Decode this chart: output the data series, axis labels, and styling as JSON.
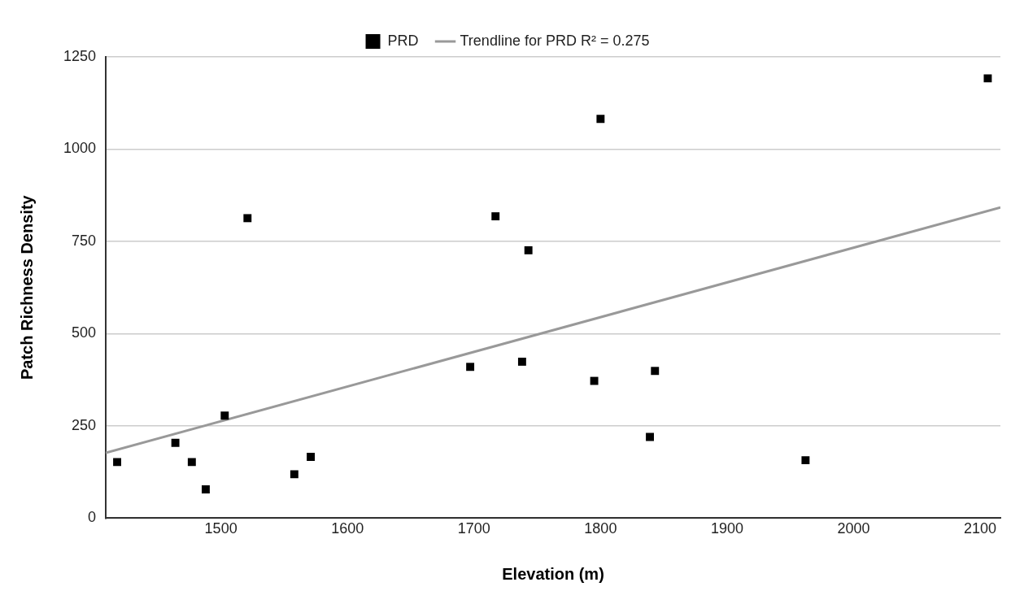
{
  "chart_data": {
    "type": "scatter",
    "xlabel": "Elevation (m)",
    "ylabel": "Patch Richness Density",
    "xlim": [
      1409,
      2116
    ],
    "xticks": [
      1500,
      1600,
      1700,
      1800,
      1900,
      2000,
      2100
    ],
    "ylim": [
      0,
      1250
    ],
    "yticks": [
      0,
      250,
      500,
      750,
      1000,
      1250
    ],
    "grid": "y",
    "legend": "top",
    "series": [
      {
        "name": "PRD",
        "color": "#000000",
        "marker": "square",
        "x": [
          1418,
          1464,
          1477,
          1488,
          1503,
          1521,
          1558,
          1571,
          1697,
          1717,
          1738,
          1743,
          1795,
          1800,
          1839,
          1843,
          1962,
          2106
        ],
        "values": [
          152,
          204,
          152,
          78,
          278,
          813,
          119,
          166,
          410,
          818,
          424,
          726,
          372,
          1082,
          220,
          399,
          157,
          1192
        ]
      },
      {
        "name": "Trendline for PRD R² = 0.275",
        "type": "line",
        "marker": "none",
        "color": "#999999",
        "x": [
          1409,
          2116
        ],
        "values": [
          177,
          842
        ]
      }
    ]
  }
}
